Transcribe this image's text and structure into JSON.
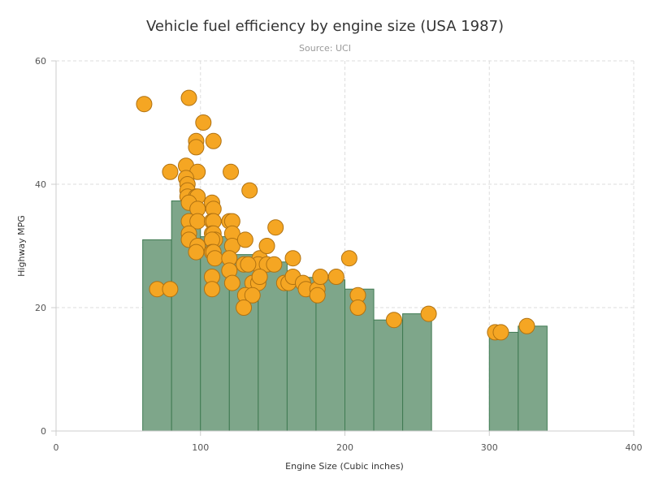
{
  "chart_data": {
    "type": "bar",
    "title": "Vehicle fuel efficiency by engine size (USA 1987)",
    "subtitle": "Source: UCI",
    "xlabel": "Engine Size (Cubic inches)",
    "ylabel": "Highway MPG",
    "xlim": [
      0,
      400
    ],
    "ylim": [
      0,
      60
    ],
    "x_ticks": [
      0,
      100,
      200,
      300,
      400
    ],
    "y_ticks": [
      0,
      20,
      40,
      60
    ],
    "grid": true,
    "colors": {
      "bar_fill": "#7ea68a",
      "bar_stroke": "#3f7a52",
      "point_fill": "#f5a623",
      "point_stroke": "#b07212"
    },
    "bins": [
      {
        "x0": 60,
        "x1": 80,
        "value": 31
      },
      {
        "x0": 80,
        "x1": 100,
        "value": 37.3
      },
      {
        "x0": 100,
        "x1": 120,
        "value": 31.5
      },
      {
        "x0": 120,
        "x1": 140,
        "value": 28.6
      },
      {
        "x0": 140,
        "x1": 160,
        "value": 27.4
      },
      {
        "x0": 160,
        "x1": 180,
        "value": 24.9
      },
      {
        "x0": 180,
        "x1": 200,
        "value": 24.5
      },
      {
        "x0": 200,
        "x1": 220,
        "value": 23
      },
      {
        "x0": 220,
        "x1": 240,
        "value": 18
      },
      {
        "x0": 240,
        "x1": 260,
        "value": 19
      },
      {
        "x0": 300,
        "x1": 320,
        "value": 16
      },
      {
        "x0": 320,
        "x1": 340,
        "value": 17
      }
    ],
    "scatter": [
      [
        61,
        53
      ],
      [
        70,
        23
      ],
      [
        79,
        23
      ],
      [
        79,
        42
      ],
      [
        92,
        54
      ],
      [
        102,
        50
      ],
      [
        109,
        47
      ],
      [
        97,
        47
      ],
      [
        97,
        46
      ],
      [
        90,
        43
      ],
      [
        98,
        42
      ],
      [
        90,
        41
      ],
      [
        91,
        40
      ],
      [
        91,
        39
      ],
      [
        91,
        38
      ],
      [
        97,
        38
      ],
      [
        98,
        38
      ],
      [
        92,
        37
      ],
      [
        108,
        37
      ],
      [
        98,
        36
      ],
      [
        109,
        36
      ],
      [
        92,
        34
      ],
      [
        98,
        34
      ],
      [
        108,
        34
      ],
      [
        109,
        34
      ],
      [
        120,
        34
      ],
      [
        122,
        34
      ],
      [
        92,
        32
      ],
      [
        108,
        32
      ],
      [
        109,
        32
      ],
      [
        110,
        31
      ],
      [
        122,
        32
      ],
      [
        92,
        31
      ],
      [
        108,
        31
      ],
      [
        121,
        42
      ],
      [
        134,
        39
      ],
      [
        98,
        30
      ],
      [
        122,
        30
      ],
      [
        108,
        29
      ],
      [
        109,
        29
      ],
      [
        97,
        29
      ],
      [
        110,
        28
      ],
      [
        120,
        28
      ],
      [
        141,
        28
      ],
      [
        164,
        28
      ],
      [
        130,
        27
      ],
      [
        120,
        26
      ],
      [
        140,
        27
      ],
      [
        146,
        27
      ],
      [
        151,
        27
      ],
      [
        108,
        25
      ],
      [
        122,
        24
      ],
      [
        136,
        24
      ],
      [
        140,
        24
      ],
      [
        141,
        25
      ],
      [
        146,
        30
      ],
      [
        152,
        33
      ],
      [
        158,
        24
      ],
      [
        161,
        24
      ],
      [
        164,
        25
      ],
      [
        171,
        24
      ],
      [
        173,
        23
      ],
      [
        181,
        23
      ],
      [
        183,
        25
      ],
      [
        181,
        22
      ],
      [
        194,
        25
      ],
      [
        203,
        28
      ],
      [
        209,
        22
      ],
      [
        209,
        20
      ],
      [
        131,
        22
      ],
      [
        136,
        22
      ],
      [
        130,
        20
      ],
      [
        133,
        27
      ],
      [
        108,
        23
      ],
      [
        131,
        31
      ],
      [
        234,
        18
      ],
      [
        258,
        19
      ],
      [
        304,
        16
      ],
      [
        308,
        16
      ],
      [
        326,
        17
      ]
    ]
  }
}
